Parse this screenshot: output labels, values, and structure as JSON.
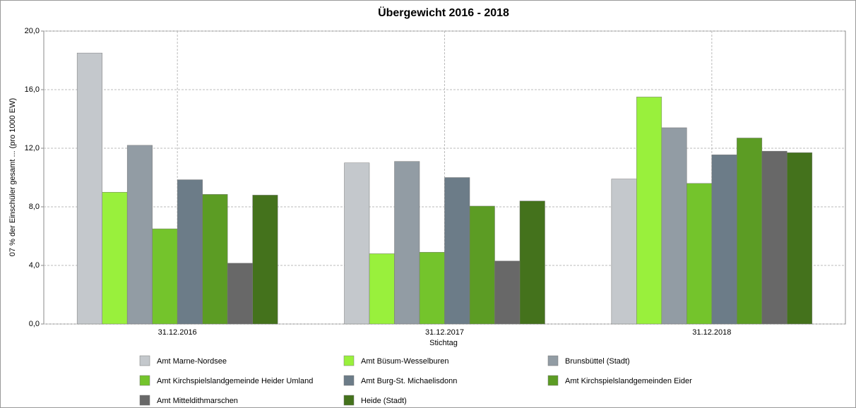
{
  "chart_data": {
    "type": "bar",
    "title": "Übergewicht 2016 - 2018",
    "xlabel": "Stichtag",
    "ylabel": "07 % der Einschüler gesamt ... (pro 1000 EW)",
    "categories": [
      "31.12.2016",
      "31.12.2017",
      "31.12.2018"
    ],
    "series": [
      {
        "name": "Amt Marne-Nordsee",
        "color": "#c4c8cc",
        "values": [
          18.5,
          11.0,
          9.9
        ]
      },
      {
        "name": "Amt Büsum-Wesselburen",
        "color": "#99f03c",
        "values": [
          9.0,
          4.8,
          15.5
        ]
      },
      {
        "name": "Brunsbüttel (Stadt)",
        "color": "#929ca4",
        "values": [
          12.2,
          11.1,
          13.4
        ]
      },
      {
        "name": "Amt Kirchspielslandgemeinde Heider Umland",
        "color": "#74c42c",
        "values": [
          6.5,
          4.9,
          9.6
        ]
      },
      {
        "name": "Amt Burg-St. Michaelisdonn",
        "color": "#6c7c88",
        "values": [
          9.85,
          10.0,
          11.55
        ]
      },
      {
        "name": "Amt Kirchspielslandgemeinden Eider",
        "color": "#5c9c24",
        "values": [
          8.85,
          8.05,
          12.7
        ]
      },
      {
        "name": "Amt Mitteldithmarschen",
        "color": "#686868",
        "values": [
          4.15,
          4.3,
          11.8
        ]
      },
      {
        "name": "Heide (Stadt)",
        "color": "#44721c",
        "values": [
          8.8,
          8.4,
          11.7
        ]
      }
    ],
    "ylim": [
      0,
      20
    ],
    "yticks": [
      {
        "value": 0,
        "label": "0,0"
      },
      {
        "value": 4,
        "label": "4,0"
      },
      {
        "value": 8,
        "label": "8,0"
      },
      {
        "value": 12,
        "label": "12,0"
      },
      {
        "value": 16,
        "label": "16,0"
      },
      {
        "value": 20,
        "label": "20,0"
      }
    ],
    "grid": true,
    "legend": "bottom"
  }
}
